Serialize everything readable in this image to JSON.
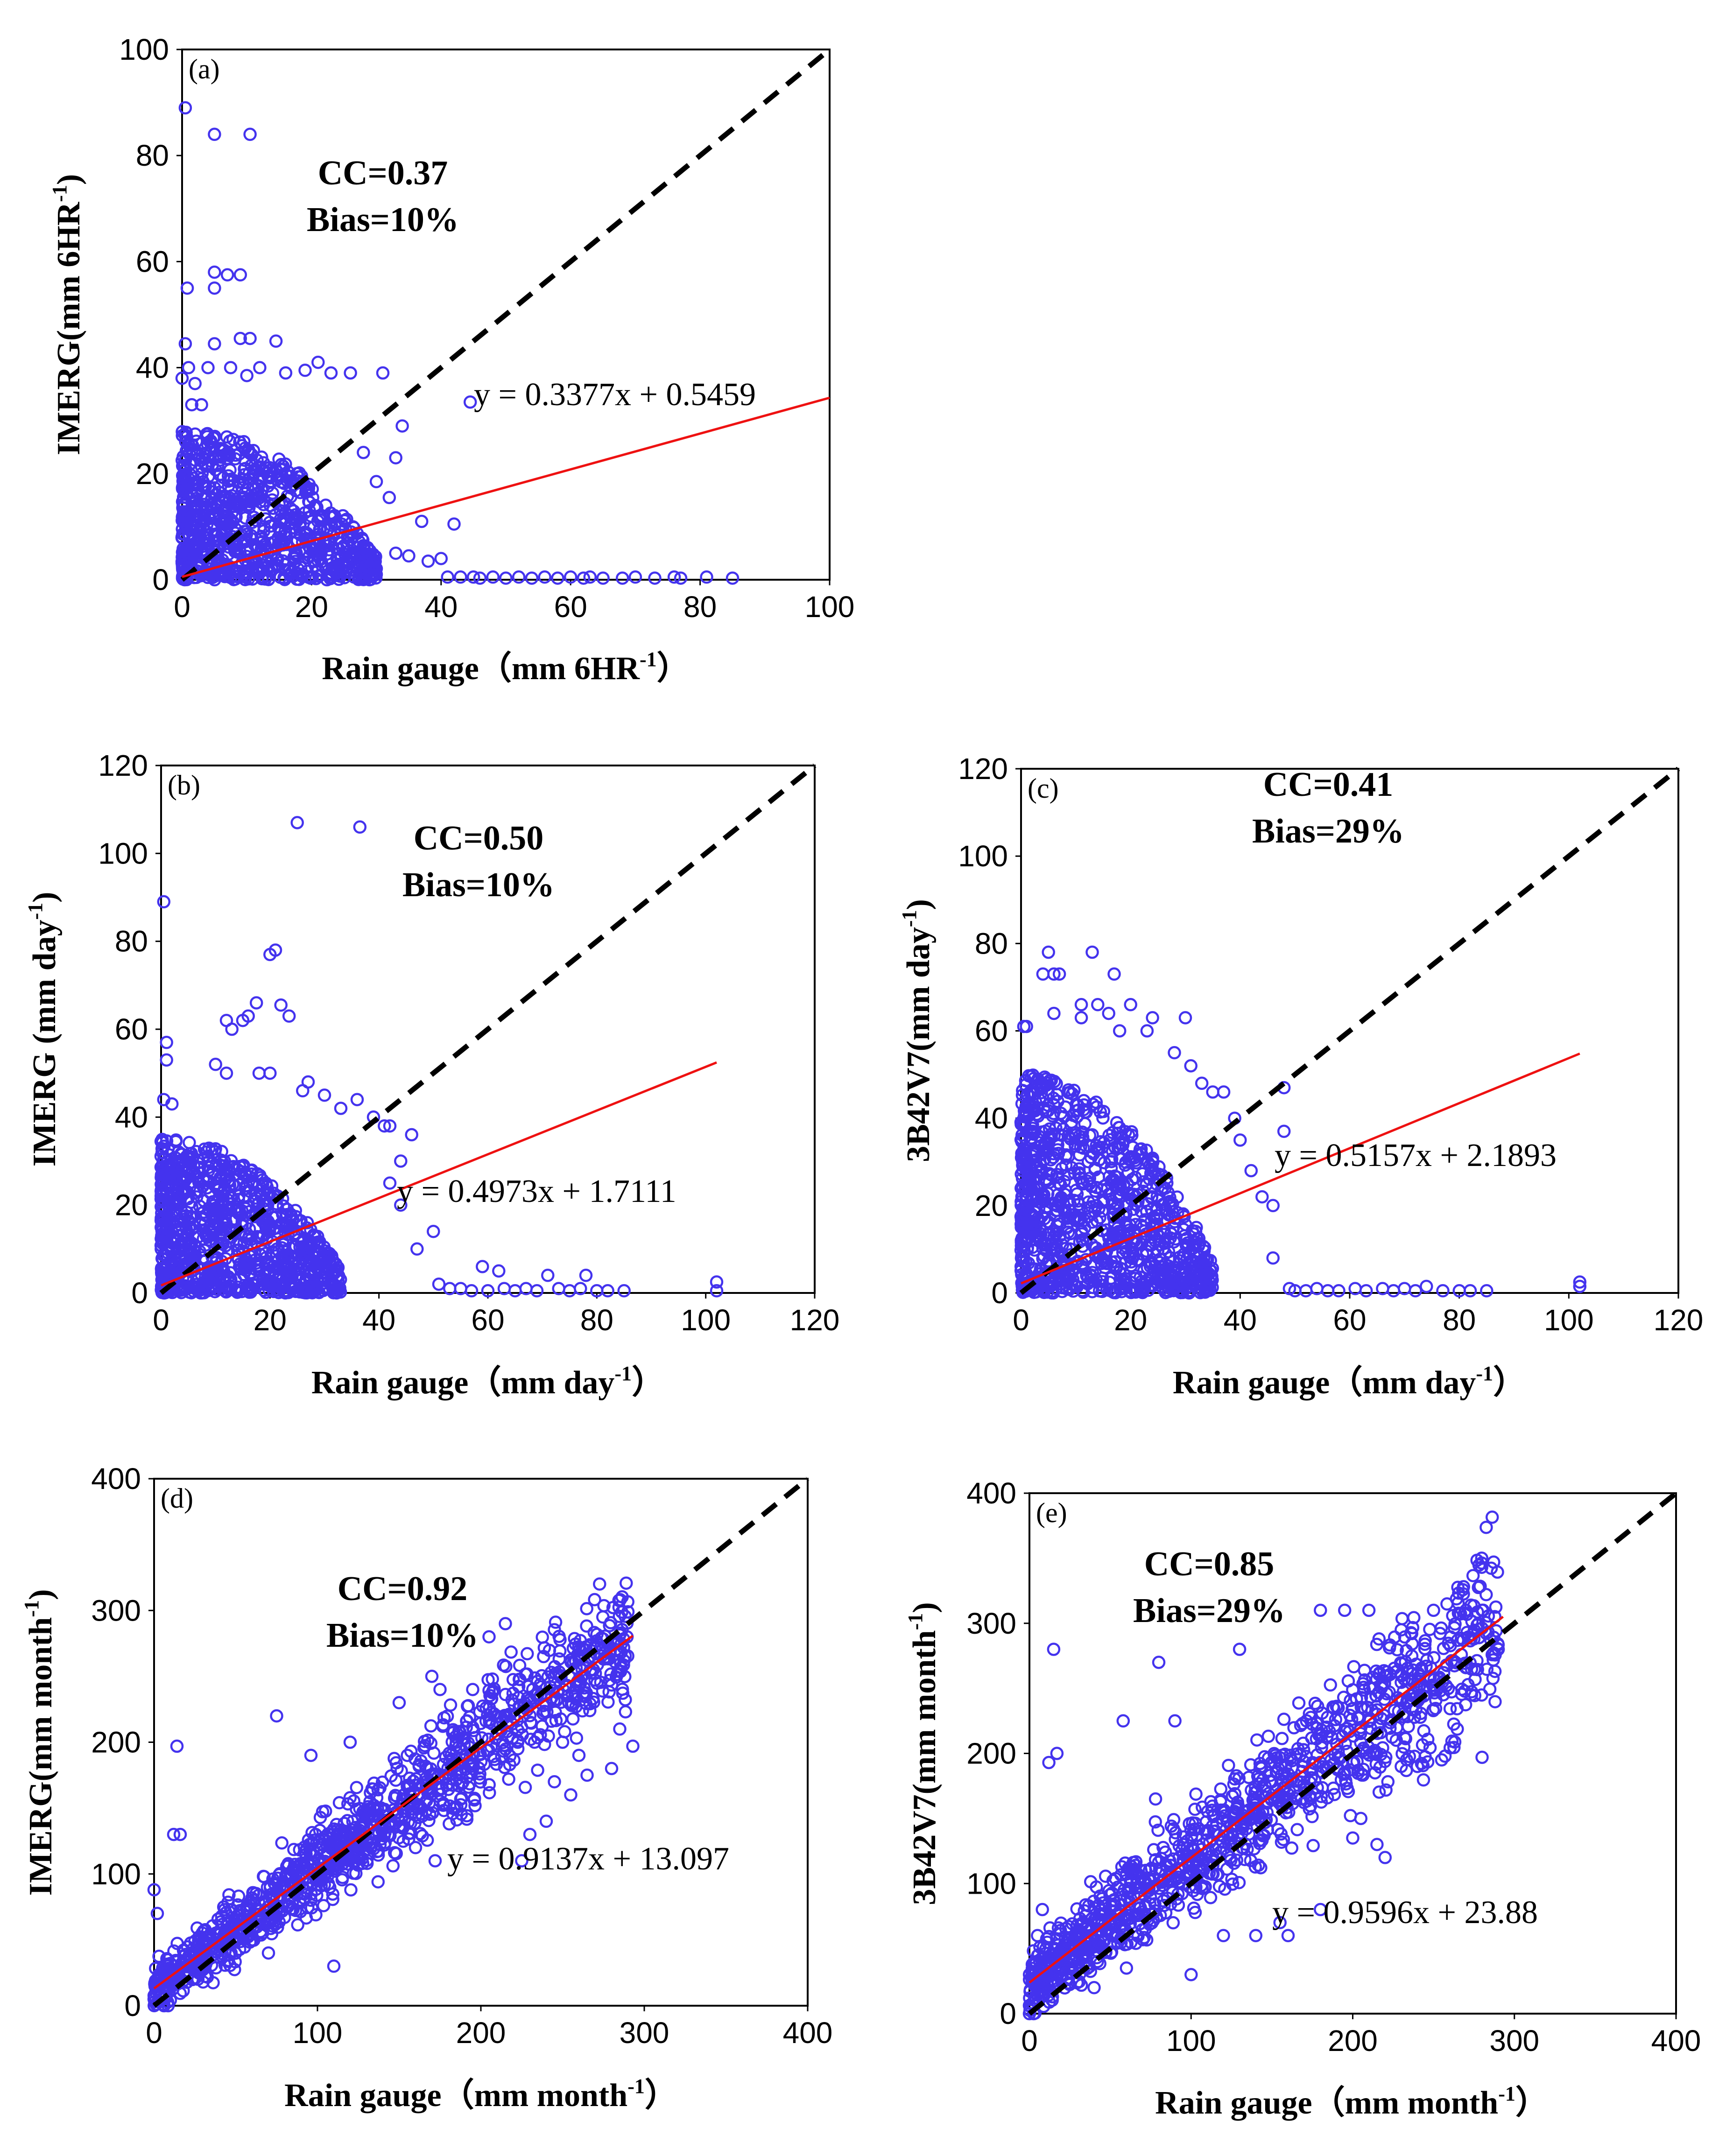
{
  "figure": {
    "marker_color": "#4433ee",
    "fit_color": "#ee1111",
    "identity_color": "#000000"
  },
  "chart_data": [
    {
      "id": "a",
      "type": "scatter",
      "panel_label": "(a)",
      "xlabel_main": "Rain  gauge（mm 6HR",
      "xlabel_sup": "-1",
      "xlabel_end": "）",
      "ylabel_main": "IMERG(mm 6HR",
      "ylabel_sup": "-1",
      "ylabel_end": ")",
      "xlim": [
        0,
        100
      ],
      "ylim": [
        0,
        100
      ],
      "xticks": [
        0,
        20,
        40,
        60,
        80,
        100
      ],
      "yticks": [
        0,
        20,
        40,
        60,
        80,
        100
      ],
      "cc_text": "CC=0.37",
      "bias_text": "Bias=10%",
      "equation_text": "y = 0.3377x + 0.5459",
      "fit": {
        "slope": 0.3377,
        "intercept": 0.5459,
        "x_range": [
          0,
          100
        ]
      },
      "cloud": {
        "mode": "lowrain",
        "n": 900,
        "xmax": 30,
        "ymax": 28,
        "seed": 11
      },
      "points": [
        [
          0.5,
          89
        ],
        [
          5,
          84
        ],
        [
          10.5,
          84
        ],
        [
          5,
          58
        ],
        [
          7,
          57.5
        ],
        [
          9,
          57.5
        ],
        [
          0.8,
          55
        ],
        [
          5,
          55
        ],
        [
          0.5,
          44.5
        ],
        [
          5,
          44.5
        ],
        [
          9,
          45.5
        ],
        [
          10.5,
          45.5
        ],
        [
          14.5,
          45
        ],
        [
          1,
          40
        ],
        [
          4,
          40
        ],
        [
          7.5,
          40
        ],
        [
          10,
          38.5
        ],
        [
          12,
          40
        ],
        [
          16,
          39
        ],
        [
          19,
          39.5
        ],
        [
          21,
          41
        ],
        [
          23,
          39
        ],
        [
          26,
          39
        ],
        [
          31,
          39
        ],
        [
          0,
          38
        ],
        [
          2,
          37
        ],
        [
          3,
          33
        ],
        [
          1.5,
          33
        ],
        [
          44.5,
          33.5
        ],
        [
          34,
          29
        ],
        [
          33,
          23
        ],
        [
          28,
          24
        ],
        [
          30,
          18.5
        ],
        [
          32,
          15.5
        ],
        [
          37,
          11
        ],
        [
          42,
          10.5
        ],
        [
          33,
          5
        ],
        [
          35,
          4.5
        ],
        [
          38,
          3.5
        ],
        [
          40,
          4
        ],
        [
          41,
          0.5
        ],
        [
          43,
          0.5
        ],
        [
          45,
          0.5
        ],
        [
          46,
          0.3
        ],
        [
          48,
          0.5
        ],
        [
          50,
          0.3
        ],
        [
          52,
          0.5
        ],
        [
          54,
          0.3
        ],
        [
          56,
          0.5
        ],
        [
          58,
          0.3
        ],
        [
          60,
          0.5
        ],
        [
          62,
          0.3
        ],
        [
          63,
          0.5
        ],
        [
          65,
          0.3
        ],
        [
          68,
          0.3
        ],
        [
          70,
          0.5
        ],
        [
          73,
          0.3
        ],
        [
          76,
          0.5
        ],
        [
          77,
          0.3
        ],
        [
          81,
          0.5
        ],
        [
          85,
          0.3
        ]
      ]
    },
    {
      "id": "b",
      "type": "scatter",
      "panel_label": "(b)",
      "xlabel_main": "Rain  gauge（mm day",
      "xlabel_sup": "-1",
      "xlabel_end": "）",
      "ylabel_main": "IMERG (mm day",
      "ylabel_sup": "-1",
      "ylabel_end": ")",
      "xlim": [
        0,
        120
      ],
      "ylim": [
        0,
        120
      ],
      "xticks": [
        0,
        20,
        40,
        60,
        80,
        100,
        120
      ],
      "yticks": [
        0,
        20,
        40,
        60,
        80,
        100,
        120
      ],
      "cc_text": "CC=0.50",
      "bias_text": "Bias=10%",
      "equation_text": "y = 0.4973x + 1.7111",
      "fit": {
        "slope": 0.4973,
        "intercept": 1.7111,
        "x_range": [
          0,
          102
        ]
      },
      "cloud": {
        "mode": "lowrain",
        "n": 1000,
        "xmax": 33,
        "ymax": 35,
        "seed": 23
      },
      "points": [
        [
          0.5,
          89
        ],
        [
          1,
          57
        ],
        [
          1,
          53
        ],
        [
          0.5,
          44
        ],
        [
          2,
          43
        ],
        [
          25,
          107
        ],
        [
          36.5,
          106
        ],
        [
          16,
          63
        ],
        [
          17.5,
          66
        ],
        [
          21,
          78
        ],
        [
          20,
          77
        ],
        [
          22,
          65.5
        ],
        [
          23.5,
          63
        ],
        [
          15,
          62
        ],
        [
          13,
          60
        ],
        [
          12,
          62
        ],
        [
          10,
          52
        ],
        [
          12,
          50
        ],
        [
          18,
          50
        ],
        [
          20,
          50
        ],
        [
          26,
          46
        ],
        [
          27,
          48
        ],
        [
          30,
          45
        ],
        [
          33,
          42
        ],
        [
          36,
          44
        ],
        [
          39,
          40
        ],
        [
          41,
          38
        ],
        [
          44,
          30
        ],
        [
          42,
          25
        ],
        [
          44,
          20
        ],
        [
          47,
          10
        ],
        [
          50,
          14
        ],
        [
          51,
          2
        ],
        [
          53,
          1
        ],
        [
          55,
          1
        ],
        [
          57,
          0.5
        ],
        [
          59,
          6
        ],
        [
          60,
          0.5
        ],
        [
          62,
          5
        ],
        [
          63,
          1
        ],
        [
          65,
          0.5
        ],
        [
          67,
          1
        ],
        [
          69,
          0.5
        ],
        [
          71,
          4
        ],
        [
          73,
          1
        ],
        [
          75,
          0.5
        ],
        [
          77,
          1
        ],
        [
          78,
          4
        ],
        [
          80,
          0.5
        ],
        [
          82,
          0.5
        ],
        [
          85,
          0.5
        ],
        [
          102,
          0.5
        ],
        [
          102,
          2.5
        ],
        [
          42,
          38
        ],
        [
          46,
          36
        ]
      ]
    },
    {
      "id": "c",
      "type": "scatter",
      "panel_label": "(c)",
      "xlabel_main": "Rain  gauge（mm day",
      "xlabel_sup": "-1",
      "xlabel_end": "）",
      "ylabel_main": "3B42V7(mm day",
      "ylabel_sup": "-1",
      "ylabel_end": ")",
      "xlim": [
        0,
        120
      ],
      "ylim": [
        0,
        120
      ],
      "xticks": [
        0,
        20,
        40,
        60,
        80,
        100,
        120
      ],
      "yticks": [
        0,
        20,
        40,
        60,
        80,
        100,
        120
      ],
      "cc_text": "CC=0.41",
      "bias_text": "Bias=29%",
      "equation_text": "y = 0.5157x + 2.1893",
      "fit": {
        "slope": 0.5157,
        "intercept": 2.1893,
        "x_range": [
          0,
          102
        ]
      },
      "cloud": {
        "mode": "lowrain",
        "n": 1100,
        "xmax": 35,
        "ymax": 50,
        "seed": 37
      },
      "points": [
        [
          0.5,
          61
        ],
        [
          1,
          61
        ],
        [
          4,
          73
        ],
        [
          5,
          78
        ],
        [
          6,
          73
        ],
        [
          7,
          73
        ],
        [
          6,
          64
        ],
        [
          11,
          66
        ],
        [
          11,
          63
        ],
        [
          13,
          78
        ],
        [
          14,
          66
        ],
        [
          16,
          64
        ],
        [
          17,
          73
        ],
        [
          18,
          60
        ],
        [
          20,
          66
        ],
        [
          24,
          63
        ],
        [
          23,
          60
        ],
        [
          30,
          63
        ],
        [
          28,
          55
        ],
        [
          31,
          52
        ],
        [
          33,
          48
        ],
        [
          35,
          46
        ],
        [
          37,
          46
        ],
        [
          39,
          40
        ],
        [
          40,
          35
        ],
        [
          42,
          28
        ],
        [
          44,
          22
        ],
        [
          48,
          47
        ],
        [
          48,
          37
        ],
        [
          46,
          20
        ],
        [
          46,
          8
        ],
        [
          49,
          1
        ],
        [
          50,
          0.5
        ],
        [
          52,
          0.5
        ],
        [
          54,
          1
        ],
        [
          56,
          0.5
        ],
        [
          58,
          0.5
        ],
        [
          61,
          1
        ],
        [
          63,
          0.5
        ],
        [
          66,
          1
        ],
        [
          68,
          0.5
        ],
        [
          70,
          1
        ],
        [
          72,
          0.5
        ],
        [
          74,
          1.5
        ],
        [
          77,
          0.5
        ],
        [
          80,
          0.5
        ],
        [
          82,
          0.5
        ],
        [
          85,
          0.5
        ],
        [
          102,
          1.5
        ],
        [
          102,
          2.5
        ]
      ]
    },
    {
      "id": "d",
      "type": "scatter",
      "panel_label": "(d)",
      "xlabel_main": "Rain  gauge（mm month",
      "xlabel_sup": "-1",
      "xlabel_end": "）",
      "ylabel_main": "IMERG(mm month",
      "ylabel_sup": "-1",
      "ylabel_end": ")",
      "xlim": [
        0,
        400
      ],
      "ylim": [
        0,
        400
      ],
      "xticks": [
        0,
        100,
        200,
        300,
        400
      ],
      "yticks": [
        0,
        100,
        200,
        300,
        400
      ],
      "cc_text": "CC=0.92",
      "bias_text": "Bias=10%",
      "equation_text": "y = 0.9137x + 13.097",
      "fit": {
        "slope": 0.9137,
        "intercept": 13.097,
        "x_range": [
          0,
          293
        ]
      },
      "cloud": {
        "mode": "monthly",
        "n": 1150,
        "xmax": 290,
        "slope": 0.9137,
        "intercept": 13.097,
        "spread": 22,
        "seed": 51
      },
      "points": [
        [
          14,
          197
        ],
        [
          12,
          130
        ],
        [
          16,
          130
        ],
        [
          0,
          88
        ],
        [
          2,
          70
        ],
        [
          0,
          5
        ],
        [
          1,
          10
        ],
        [
          75,
          220
        ],
        [
          215,
          290
        ],
        [
          205,
          280
        ],
        [
          293,
          197
        ],
        [
          285,
          210
        ],
        [
          260,
          190
        ],
        [
          280,
          180
        ],
        [
          250,
          200
        ],
        [
          262,
          255
        ],
        [
          243,
          253
        ],
        [
          110,
          30
        ],
        [
          60,
          50
        ],
        [
          30,
          18
        ],
        [
          70,
          40
        ],
        [
          150,
          230
        ],
        [
          175,
          240
        ],
        [
          195,
          240
        ],
        [
          170,
          250
        ],
        [
          155,
          190
        ],
        [
          225,
          110
        ],
        [
          230,
          130
        ],
        [
          240,
          140
        ],
        [
          245,
          170
        ],
        [
          255,
          160
        ],
        [
          265,
          175
        ],
        [
          185,
          200
        ],
        [
          172,
          110
        ],
        [
          160,
          120
        ],
        [
          96,
          190
        ],
        [
          120,
          200
        ]
      ]
    },
    {
      "id": "e",
      "type": "scatter",
      "panel_label": "(e)",
      "xlabel_main": "Rain  gauge（mm month",
      "xlabel_sup": "-1",
      "xlabel_end": "）",
      "ylabel_main": "3B42V7(mm month",
      "ylabel_sup": "-1",
      "ylabel_end": ")",
      "xlim": [
        0,
        400
      ],
      "ylim": [
        0,
        400
      ],
      "xticks": [
        0,
        100,
        200,
        300,
        400
      ],
      "yticks": [
        0,
        100,
        200,
        300,
        400
      ],
      "cc_text": "CC=0.85",
      "bias_text": "Bias=29%",
      "equation_text": "y = 0.9596x + 23.88",
      "fit": {
        "slope": 0.9596,
        "intercept": 23.88,
        "x_range": [
          0,
          293
        ]
      },
      "cloud": {
        "mode": "monthly",
        "n": 1150,
        "xmax": 290,
        "slope": 0.9596,
        "intercept": 23.88,
        "spread": 30,
        "seed": 67
      },
      "points": [
        [
          15,
          280
        ],
        [
          17,
          200
        ],
        [
          12,
          193
        ],
        [
          8,
          80
        ],
        [
          5,
          60
        ],
        [
          0,
          0
        ],
        [
          1,
          5
        ],
        [
          80,
          270
        ],
        [
          78,
          165
        ],
        [
          90,
          225
        ],
        [
          130,
          280
        ],
        [
          230,
          295
        ],
        [
          195,
          310
        ],
        [
          210,
          310
        ],
        [
          180,
          310
        ],
        [
          250,
          310
        ],
        [
          270,
          310
        ],
        [
          280,
          310
        ],
        [
          290,
          280
        ],
        [
          280,
          197
        ],
        [
          240,
          190
        ],
        [
          255,
          195
        ],
        [
          230,
          190
        ],
        [
          205,
          150
        ],
        [
          215,
          130
        ],
        [
          180,
          80
        ],
        [
          155,
          70
        ],
        [
          160,
          60
        ],
        [
          140,
          60
        ],
        [
          120,
          60
        ],
        [
          100,
          30
        ],
        [
          60,
          35
        ],
        [
          40,
          20
        ],
        [
          58,
          225
        ],
        [
          65,
          75
        ],
        [
          220,
          120
        ],
        [
          200,
          135
        ]
      ]
    }
  ]
}
